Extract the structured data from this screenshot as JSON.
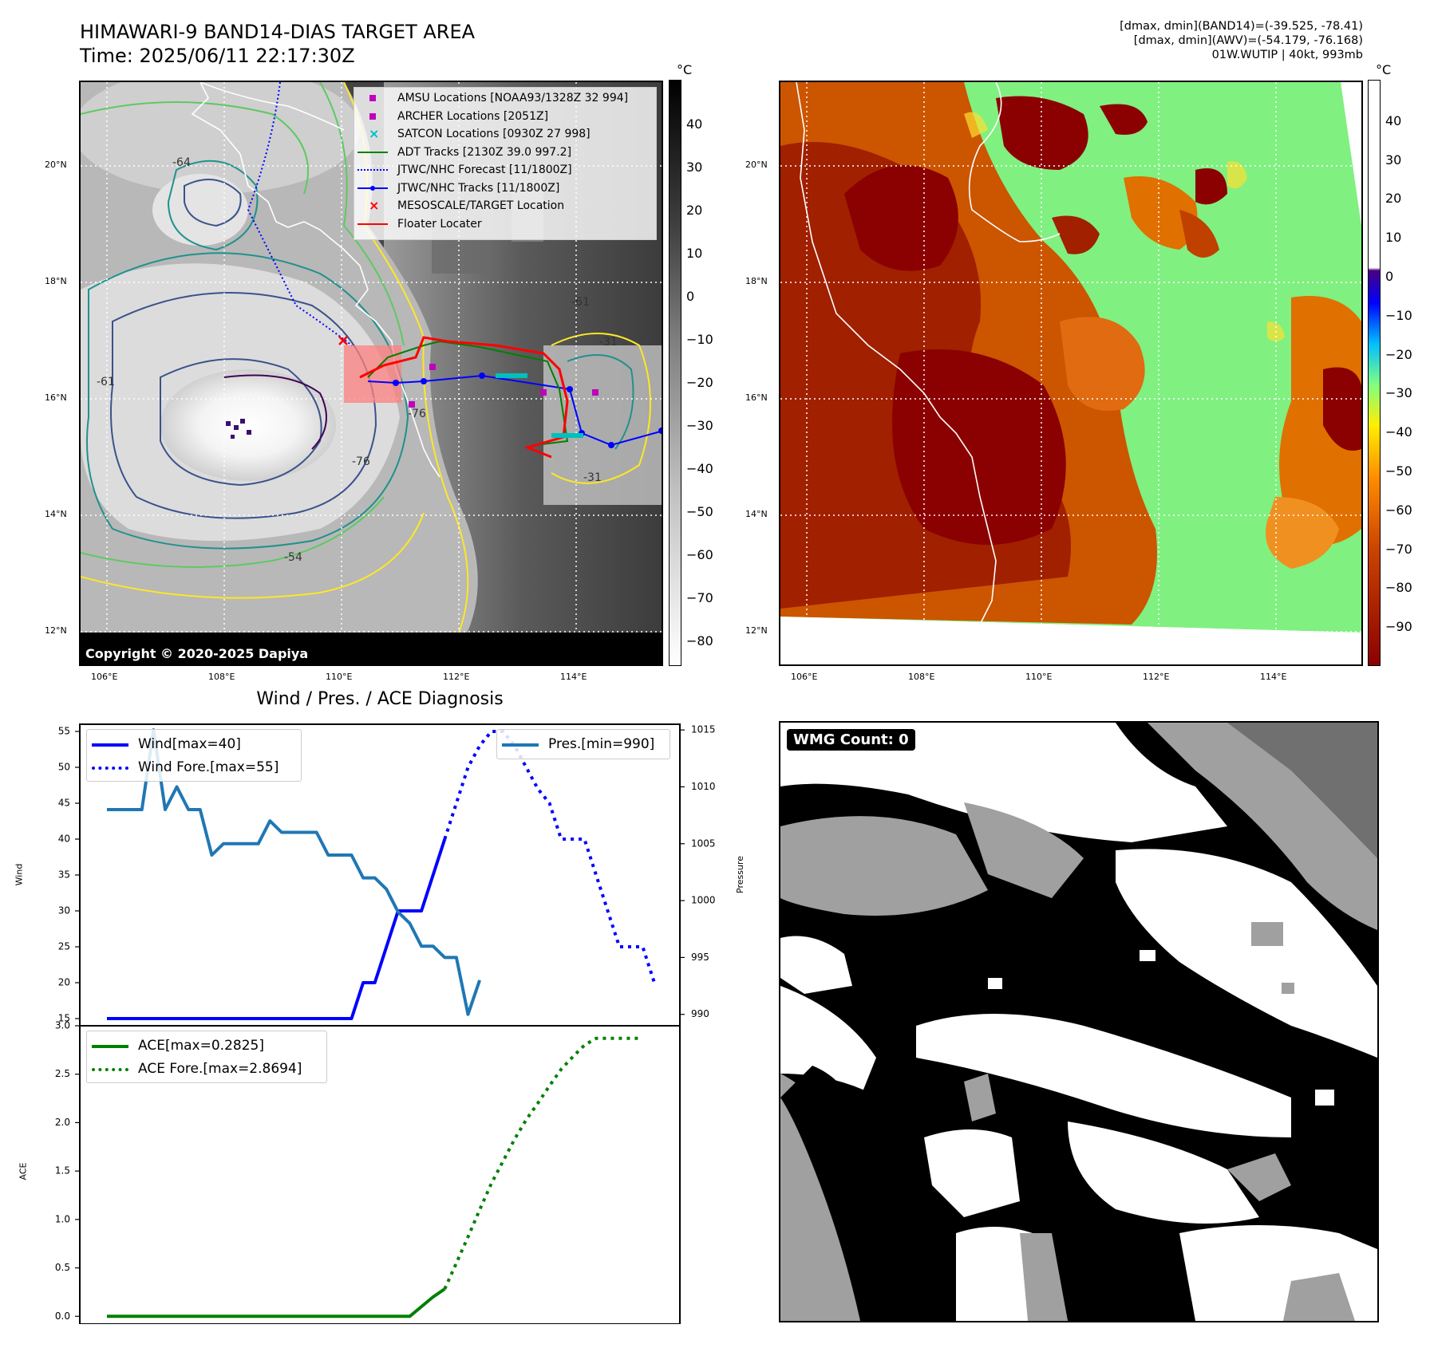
{
  "header": {
    "title_line1": "HIMAWARI-9 BAND14-DIAS TARGET AREA",
    "title_line2": "Time: 2025/06/11 22:17:30Z",
    "info_line1": "[dmax, dmin](BAND14)=(-39.525, -78.41)",
    "info_line2": "[dmax, dmin](AWV)=(-54.179, -76.168)",
    "info_line3": "01W.WUTIP | 40kt, 993mb"
  },
  "map_axes": {
    "lat_ticks": [
      "20°N",
      "18°N",
      "16°N",
      "14°N",
      "12°N"
    ],
    "lon_ticks": [
      "106°E",
      "108°E",
      "110°E",
      "112°E",
      "114°E"
    ]
  },
  "ir_panel": {
    "colorbar_unit": "°C",
    "colorbar_ticks": [
      "40",
      "30",
      "20",
      "10",
      "0",
      "−10",
      "−20",
      "−30",
      "−40",
      "−50",
      "−60",
      "−70",
      "−80"
    ],
    "copyright": "Copyright © 2020-2025 Dapiya",
    "contour_labels": [
      "-64",
      "-61",
      "-61",
      "-76",
      "-54",
      "-31",
      "-31",
      "-76"
    ],
    "legend": [
      {
        "label": "AMSU Locations [NOAA93/1328Z 32 994]",
        "color": "#bf00bf",
        "marker": "square"
      },
      {
        "label": "ARCHER Locations [2051Z]",
        "color": "#bf00bf",
        "marker": "square"
      },
      {
        "label": "SATCON Locations [0930Z 27 998]",
        "color": "#00bfbf",
        "marker": "x"
      },
      {
        "label": "ADT Tracks [2130Z 39.0 997.2]",
        "color": "#008000",
        "marker": "line"
      },
      {
        "label": "JTWC/NHC Forecast [11/1800Z]",
        "color": "#0000ff",
        "marker": "dotted"
      },
      {
        "label": "JTWC/NHC Tracks [11/1800Z]",
        "color": "#0000ff",
        "marker": "line-dot"
      },
      {
        "label": "MESOSCALE/TARGET Location",
        "color": "#ff0000",
        "marker": "x"
      },
      {
        "label": "Floater Locater",
        "color": "#ff0000",
        "marker": "line"
      }
    ]
  },
  "awv_panel": {
    "colorbar_unit": "°C",
    "colorbar_ticks": [
      "40",
      "30",
      "20",
      "10",
      "0",
      "−10",
      "−20",
      "−30",
      "−40",
      "−50",
      "−60",
      "−70",
      "−80",
      "−90"
    ]
  },
  "wmg_panel": {
    "label": "WMG Count: 0",
    "colors": {
      "black": "#000000",
      "gray": "#a0a0a0",
      "dark_gray": "#707070",
      "white": "#ffffff"
    }
  },
  "chart_data": [
    {
      "type": "line",
      "title": "Wind / Pres. / ACE Diagnosis",
      "ylabel": "Wind",
      "ylabel_right": "Pressure",
      "ylim": [
        14,
        56
      ],
      "ylim_right": [
        989,
        1015.5
      ],
      "y_ticks": [
        "55",
        "50",
        "45",
        "40",
        "35",
        "30",
        "25",
        "20",
        "15"
      ],
      "y_ticks_right": [
        "1015",
        "1010",
        "1005",
        "1000",
        "995",
        "990"
      ],
      "series": [
        {
          "name": "Wind[max=40]",
          "color": "#0000ff",
          "style": "solid",
          "points": [
            [
              0,
              15
            ],
            [
              1,
              15
            ],
            [
              2,
              15
            ],
            [
              3,
              15
            ],
            [
              4,
              15
            ],
            [
              5,
              15
            ],
            [
              6,
              15
            ],
            [
              7,
              15
            ],
            [
              8,
              15
            ],
            [
              9,
              15
            ],
            [
              10,
              15
            ],
            [
              11,
              15
            ],
            [
              12,
              15
            ],
            [
              13,
              15
            ],
            [
              14,
              15
            ],
            [
              15,
              15
            ],
            [
              16,
              15
            ],
            [
              17,
              15
            ],
            [
              18,
              15
            ],
            [
              19,
              15
            ],
            [
              20,
              15
            ],
            [
              21,
              15
            ],
            [
              22,
              20
            ],
            [
              23,
              20
            ],
            [
              24,
              25
            ],
            [
              25,
              30
            ],
            [
              26,
              30
            ],
            [
              27,
              30
            ],
            [
              28,
              35
            ],
            [
              29,
              40
            ]
          ]
        },
        {
          "name": "Wind Fore.[max=55]",
          "color": "#0000ff",
          "style": "dotted",
          "points": [
            [
              29,
              40
            ],
            [
              30,
              45
            ],
            [
              31,
              50
            ],
            [
              32,
              53
            ],
            [
              33,
              55
            ],
            [
              34,
              55
            ],
            [
              35,
              53
            ],
            [
              36,
              50
            ],
            [
              37,
              47
            ],
            [
              38,
              45
            ],
            [
              39,
              40
            ],
            [
              40,
              40
            ],
            [
              41,
              40
            ],
            [
              42,
              35
            ],
            [
              43,
              30
            ],
            [
              44,
              25
            ],
            [
              45,
              25
            ],
            [
              46,
              25
            ],
            [
              47,
              20
            ]
          ]
        },
        {
          "name": "Pres.[min=990]",
          "color": "#1f77b4",
          "style": "solid",
          "points": [
            [
              0,
              1008
            ],
            [
              1,
              1008
            ],
            [
              2,
              1008
            ],
            [
              3,
              1008
            ],
            [
              4,
              1015
            ],
            [
              5,
              1008
            ],
            [
              6,
              1010
            ],
            [
              7,
              1008
            ],
            [
              8,
              1008
            ],
            [
              9,
              1004
            ],
            [
              10,
              1005
            ],
            [
              11,
              1005
            ],
            [
              12,
              1005
            ],
            [
              13,
              1005
            ],
            [
              14,
              1007
            ],
            [
              15,
              1006
            ],
            [
              16,
              1006
            ],
            [
              17,
              1006
            ],
            [
              18,
              1006
            ],
            [
              19,
              1004
            ],
            [
              20,
              1004
            ],
            [
              21,
              1004
            ],
            [
              22,
              1002
            ],
            [
              23,
              1002
            ],
            [
              24,
              1001
            ],
            [
              25,
              999
            ],
            [
              26,
              998
            ],
            [
              27,
              996
            ],
            [
              28,
              996
            ],
            [
              29,
              995
            ],
            [
              30,
              995
            ],
            [
              31,
              990
            ],
            [
              32,
              993
            ]
          ]
        }
      ]
    },
    {
      "type": "line",
      "ylabel": "ACE",
      "ylim": [
        -0.08,
        3.0
      ],
      "y_ticks": [
        "3.0",
        "2.5",
        "2.0",
        "1.5",
        "1.0",
        "0.5",
        "0.0"
      ],
      "series": [
        {
          "name": "ACE[max=0.2825]",
          "color": "#008000",
          "style": "solid",
          "points": [
            [
              0,
              0
            ],
            [
              5,
              0
            ],
            [
              10,
              0
            ],
            [
              15,
              0
            ],
            [
              20,
              0
            ],
            [
              26,
              0
            ],
            [
              27,
              0.1
            ],
            [
              28,
              0.2
            ],
            [
              29,
              0.2825
            ]
          ]
        },
        {
          "name": "ACE Fore.[max=2.8694]",
          "color": "#008000",
          "style": "dotted",
          "points": [
            [
              29,
              0.2825
            ],
            [
              30,
              0.55
            ],
            [
              31,
              0.82
            ],
            [
              32,
              1.1
            ],
            [
              33,
              1.37
            ],
            [
              34,
              1.6
            ],
            [
              35,
              1.83
            ],
            [
              36,
              2.03
            ],
            [
              37,
              2.2
            ],
            [
              38,
              2.38
            ],
            [
              39,
              2.55
            ],
            [
              40,
              2.68
            ],
            [
              41,
              2.8
            ],
            [
              42,
              2.87
            ],
            [
              43,
              2.87
            ],
            [
              44,
              2.87
            ],
            [
              45,
              2.87
            ],
            [
              46,
              2.87
            ]
          ]
        }
      ]
    }
  ]
}
